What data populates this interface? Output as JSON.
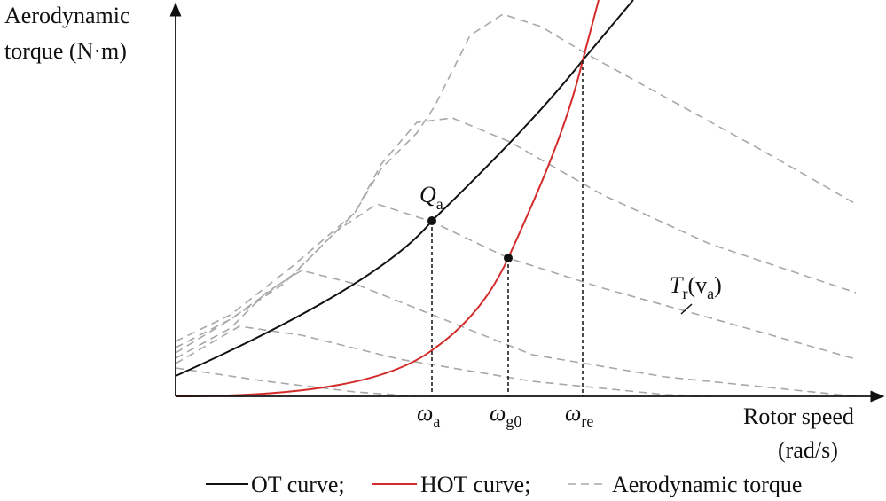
{
  "axes": {
    "y_label": [
      "Aerodynamic",
      "torque (N·m)"
    ],
    "x_label": [
      "Rotor speed",
      "(rad/s)"
    ]
  },
  "points": {
    "qa": {
      "base": "Q",
      "sub": "a"
    }
  },
  "speeds": [
    {
      "base": "ω",
      "sub": "a"
    },
    {
      "base": "ω",
      "sub": "g0"
    },
    {
      "base": "ω",
      "sub": "re"
    }
  ],
  "curve_label": {
    "base": "T",
    "sub": "r",
    "arg_open": "(v",
    "arg_sub": "a",
    "arg_close": ")"
  },
  "legend": [
    "OT curve;",
    "HOT curve;",
    "Aerodynamic torque"
  ]
}
